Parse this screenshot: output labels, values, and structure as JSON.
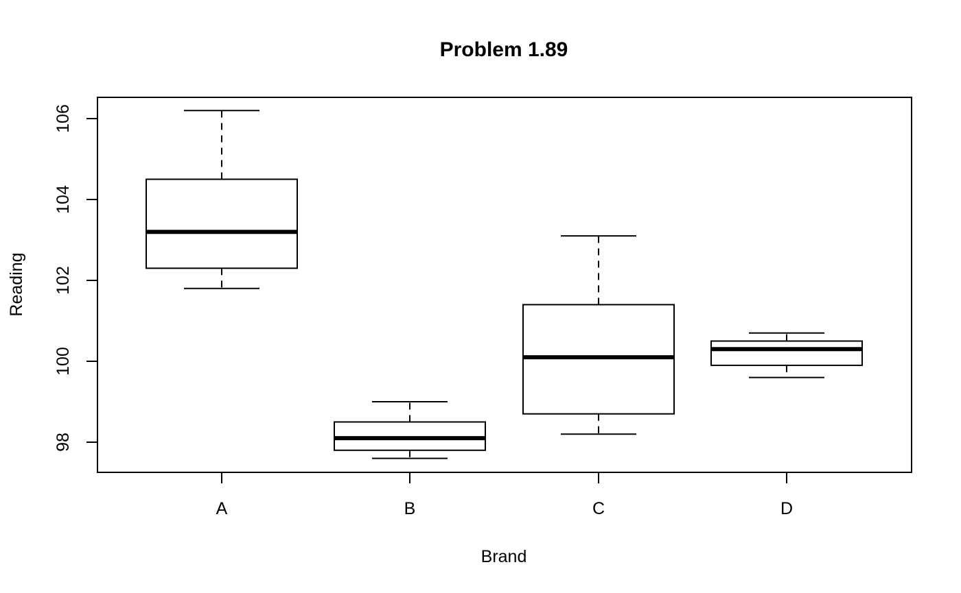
{
  "chart_data": {
    "type": "boxplot",
    "title": "Problem 1.89",
    "xlabel": "Brand",
    "ylabel": "Reading",
    "categories": [
      "A",
      "B",
      "C",
      "D"
    ],
    "boxes": [
      {
        "category": "A",
        "whisker_low": 101.8,
        "q1": 102.3,
        "median": 103.2,
        "q3": 104.5,
        "whisker_high": 106.2
      },
      {
        "category": "B",
        "whisker_low": 97.6,
        "q1": 97.8,
        "median": 98.1,
        "q3": 98.5,
        "whisker_high": 99.0
      },
      {
        "category": "C",
        "whisker_low": 98.2,
        "q1": 98.7,
        "median": 100.1,
        "q3": 101.4,
        "whisker_high": 103.1
      },
      {
        "category": "D",
        "whisker_low": 99.6,
        "q1": 99.9,
        "median": 100.3,
        "q3": 100.5,
        "whisker_high": 100.7
      }
    ],
    "yticks": [
      "98",
      "100",
      "102",
      "104",
      "106"
    ],
    "ylim": [
      97.25,
      106.5
    ],
    "grid": false,
    "legend": "none"
  }
}
